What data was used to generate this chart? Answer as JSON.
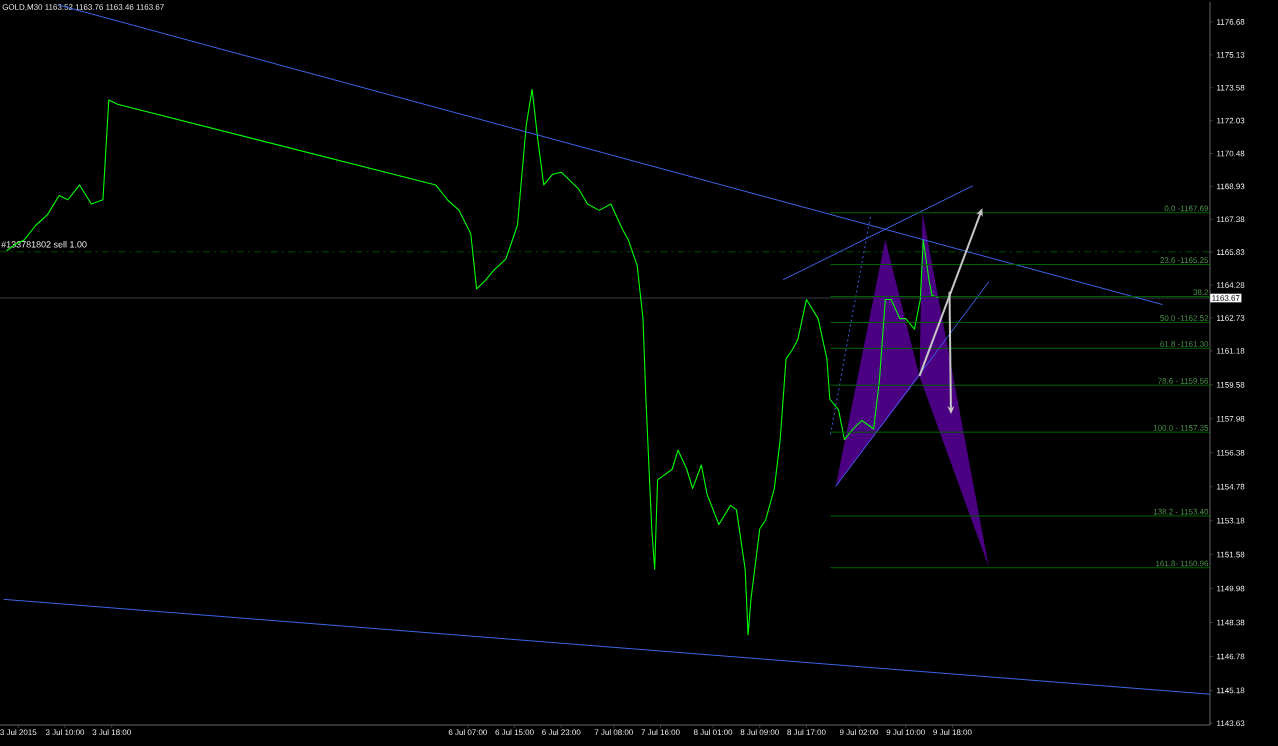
{
  "chart_data": {
    "type": "line",
    "title": "GOLD,M30  1163.52 1163.76 1163.46 1163.67",
    "xlim": [
      "2015-07-02T22:52",
      "2015-07-11T14:07"
    ],
    "xticks": [
      {
        "value": "2015-07-03T02:00",
        "label": "3 Jul 2015"
      },
      {
        "value": "2015-07-03T10:00",
        "label": "3 Jul 10:00"
      },
      {
        "value": "2015-07-03T18:00",
        "label": "3 Jul 18:00"
      },
      {
        "value": "2015-07-06T07:00",
        "label": "6 Jul 07:00"
      },
      {
        "value": "2015-07-06T15:00",
        "label": "6 Jul 15:00"
      },
      {
        "value": "2015-07-06T23:00",
        "label": "6 Jul 23:00"
      },
      {
        "value": "2015-07-07T08:00",
        "label": "7 Jul 08:00"
      },
      {
        "value": "2015-07-07T16:00",
        "label": "7 Jul 16:00"
      },
      {
        "value": "2015-07-08T01:00",
        "label": "8 Jul 01:00"
      },
      {
        "value": "2015-07-08T09:00",
        "label": "8 Jul 09:00"
      },
      {
        "value": "2015-07-08T17:00",
        "label": "8 Jul 17:00"
      },
      {
        "value": "2015-07-09T02:00",
        "label": "9 Jul 02:00"
      },
      {
        "value": "2015-07-09T10:00",
        "label": "9 Jul 10:00"
      },
      {
        "value": "2015-07-09T18:00",
        "label": "9 Jul 18:00"
      }
    ],
    "ylim": [
      1143.55,
      1177.62
    ],
    "yticks": [
      1143.63,
      1145.18,
      1146.78,
      1148.38,
      1149.98,
      1151.58,
      1153.18,
      1154.78,
      1156.38,
      1157.98,
      1159.58,
      1161.18,
      1162.73,
      1164.28,
      1165.83,
      1167.38,
      1168.93,
      1170.48,
      1172.03,
      1173.58,
      1175.13,
      1176.68
    ],
    "ref_lines": [
      {
        "axis": "y",
        "value": 1165.85,
        "label": "#133781802 sell 1.00",
        "color": "#00c000",
        "line_style": "dashed"
      },
      {
        "axis": "y",
        "value": 1163.67,
        "label": "1163.67",
        "color": "#8a9bb0"
      }
    ],
    "series": [
      {
        "color": "#00ff00",
        "x": [
          "2015-07-03T00:00",
          "2015-07-03T01:30",
          "2015-07-03T03:00",
          "2015-07-03T05:00",
          "2015-07-03T07:00",
          "2015-07-03T09:00",
          "2015-07-03T10:30",
          "2015-07-03T12:30",
          "2015-07-03T14:30",
          "2015-07-03T16:30",
          "2015-07-03T17:30",
          "2015-07-03T19:00",
          "2015-07-06T01:30",
          "2015-07-06T03:30",
          "2015-07-06T05:30",
          "2015-07-06T07:30",
          "2015-07-06T08:30",
          "2015-07-06T10:00",
          "2015-07-06T11:30",
          "2015-07-06T13:30",
          "2015-07-06T15:30",
          "2015-07-06T17:00",
          "2015-07-06T18:00",
          "2015-07-06T19:00",
          "2015-07-06T20:00",
          "2015-07-06T21:30",
          "2015-07-06T23:00",
          "2015-07-07T02:00",
          "2015-07-07T03:30",
          "2015-07-07T05:30",
          "2015-07-07T07:30",
          "2015-07-07T09:30",
          "2015-07-07T10:30",
          "2015-07-07T12:00",
          "2015-07-07T13:00",
          "2015-07-07T13:30",
          "2015-07-07T14:30",
          "2015-07-07T15:00",
          "2015-07-07T15:30",
          "2015-07-07T18:00",
          "2015-07-07T19:00",
          "2015-07-07T20:30",
          "2015-07-07T21:30",
          "2015-07-07T23:00",
          "2015-07-08T00:00",
          "2015-07-08T02:00",
          "2015-07-08T04:00",
          "2015-07-08T05:00",
          "2015-07-08T06:30",
          "2015-07-08T07:00",
          "2015-07-08T07:30",
          "2015-07-08T09:00",
          "2015-07-08T10:00",
          "2015-07-08T11:30",
          "2015-07-08T12:30",
          "2015-07-08T13:30",
          "2015-07-08T14:30",
          "2015-07-08T15:30",
          "2015-07-08T17:00",
          "2015-07-08T19:00",
          "2015-07-08T20:30",
          "2015-07-08T21:00",
          "2015-07-08T22:30",
          "2015-07-08T23:30",
          "2015-07-09T01:00",
          "2015-07-09T02:30",
          "2015-07-09T04:30",
          "2015-07-09T05:30",
          "2015-07-09T06:30",
          "2015-07-09T07:30",
          "2015-07-09T09:00",
          "2015-07-09T10:00",
          "2015-07-09T11:30",
          "2015-07-09T12:30",
          "2015-07-09T13:00",
          "2015-07-09T14:00",
          "2015-07-09T14:30",
          "2015-07-09T15:30"
        ],
        "values": [
          1165.9,
          1166.2,
          1166.4,
          1167.1,
          1167.6,
          1168.5,
          1168.3,
          1169.0,
          1168.1,
          1168.3,
          1173.0,
          1172.8,
          1169.0,
          1168.3,
          1167.8,
          1166.7,
          1164.1,
          1164.5,
          1165.0,
          1165.5,
          1167.1,
          1171.8,
          1173.5,
          1171.1,
          1169.0,
          1169.5,
          1169.6,
          1168.8,
          1168.1,
          1167.8,
          1168.1,
          1166.9,
          1166.4,
          1165.2,
          1162.7,
          1158.9,
          1152.8,
          1150.9,
          1155.1,
          1155.6,
          1156.5,
          1155.6,
          1154.7,
          1155.8,
          1154.4,
          1153.0,
          1153.9,
          1153.7,
          1150.9,
          1147.8,
          1149.5,
          1152.8,
          1153.2,
          1154.7,
          1157.0,
          1160.8,
          1161.2,
          1161.7,
          1163.6,
          1162.7,
          1160.8,
          1158.9,
          1158.4,
          1157.0,
          1157.5,
          1157.9,
          1157.5,
          1159.8,
          1163.6,
          1163.6,
          1162.7,
          1162.7,
          1162.2,
          1163.6,
          1166.4,
          1164.5,
          1163.8,
          1163.7
        ]
      },
      {
        "type": "area",
        "color": "#4b0082",
        "x": [
          "2015-07-08T22:00",
          "2015-07-09T06:30",
          "2015-07-09T12:22",
          "2015-07-09T12:52",
          "2015-07-10T00:15",
          "2015-07-09T12:22"
        ],
        "values": [
          1154.79,
          1166.42,
          1159.97,
          1167.69,
          1150.97,
          1159.97
        ]
      },
      {
        "type": "line",
        "color": "#3c64e6",
        "x": [
          "2015-07-03T08:52",
          "2015-07-11T06:00"
        ],
        "values": [
          1177.48,
          1163.36
        ]
      },
      {
        "type": "line",
        "color": "#3c64e6",
        "x": [
          "2015-07-02T23:30",
          "2015-07-11T14:07"
        ],
        "values": [
          1149.47,
          1145.0
        ]
      },
      {
        "type": "line",
        "color": "#3c64e6",
        "x": [
          "2015-07-08T13:00",
          "2015-07-09T21:30"
        ],
        "values": [
          1164.53,
          1168.96
        ]
      },
      {
        "type": "line",
        "color": "#3c64e6",
        "x": [
          "2015-07-08T22:00",
          "2015-07-10T00:15"
        ],
        "values": [
          1154.79,
          1164.44
        ]
      },
      {
        "type": "line",
        "color": "#3c64e6",
        "line_style": "dotted",
        "x": [
          "2015-07-08T21:07",
          "2015-07-09T04:00"
        ],
        "values": [
          1157.24,
          1167.59
        ]
      },
      {
        "type": "line",
        "color": "#006400",
        "name": "0.0 -1167.69",
        "x": [
          "2015-07-08T21:07",
          "2015-07-11T14:07"
        ],
        "values": [
          1167.69,
          1167.69
        ]
      },
      {
        "type": "line",
        "color": "#006400",
        "name": "23.6 -1165.25",
        "x": [
          "2015-07-08T21:07",
          "2015-07-11T14:07"
        ],
        "values": [
          1165.25,
          1165.25
        ]
      },
      {
        "type": "line",
        "color": "#006400",
        "name": "38.2",
        "x": [
          "2015-07-08T21:07",
          "2015-07-11T14:07"
        ],
        "values": [
          1163.74,
          1163.74
        ]
      },
      {
        "type": "line",
        "color": "#006400",
        "name": "50.0 -1162.52",
        "x": [
          "2015-07-08T21:07",
          "2015-07-11T14:07"
        ],
        "values": [
          1162.52,
          1162.52
        ]
      },
      {
        "type": "line",
        "color": "#006400",
        "name": "61.8 -1161.30",
        "x": [
          "2015-07-08T21:07",
          "2015-07-11T14:07"
        ],
        "values": [
          1161.3,
          1161.3
        ]
      },
      {
        "type": "line",
        "color": "#006400",
        "name": "78.6 - 1159.56",
        "x": [
          "2015-07-08T21:07",
          "2015-07-11T14:07"
        ],
        "values": [
          1159.56,
          1159.56
        ]
      },
      {
        "type": "line",
        "color": "#006400",
        "name": "100.0 - 1157.35",
        "x": [
          "2015-07-08T21:07",
          "2015-07-11T14:07"
        ],
        "values": [
          1157.35,
          1157.35
        ]
      },
      {
        "type": "line",
        "color": "#006400",
        "name": "138.2 - 1153.40",
        "x": [
          "2015-07-08T21:07",
          "2015-07-11T14:07"
        ],
        "values": [
          1153.4,
          1153.4
        ]
      },
      {
        "type": "line",
        "color": "#006400",
        "name": "161.8- 1150.96",
        "x": [
          "2015-07-08T21:07",
          "2015-07-11T14:07"
        ],
        "values": [
          1150.96,
          1150.96
        ]
      }
    ]
  }
}
